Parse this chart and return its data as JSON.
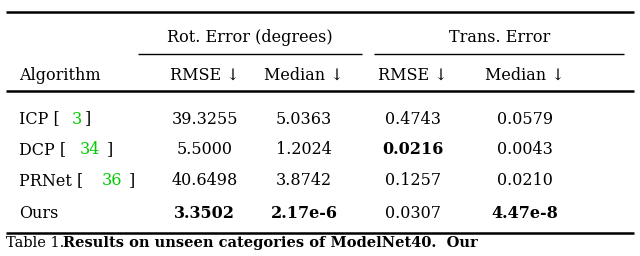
{
  "col_group1_label": "Rot. Error (degrees)",
  "col_group2_label": "Trans. Error",
  "col_headers": [
    "Algorithm",
    "RMSE ↓",
    "Median ↓",
    "RMSE ↓",
    "Median ↓"
  ],
  "rows": [
    {
      "algo_parts": [
        {
          "text": "ICP [",
          "color": "#000000"
        },
        {
          "text": "3",
          "color": "#00cc00"
        },
        {
          "text": "]",
          "color": "#000000"
        }
      ],
      "values": [
        "39.3255",
        "5.0363",
        "0.4743",
        "0.0579"
      ],
      "bold": [
        false,
        false,
        false,
        false
      ]
    },
    {
      "algo_parts": [
        {
          "text": "DCP [",
          "color": "#000000"
        },
        {
          "text": "34",
          "color": "#00cc00"
        },
        {
          "text": "]",
          "color": "#000000"
        }
      ],
      "values": [
        "5.5000",
        "1.2024",
        "0.0216",
        "0.0043"
      ],
      "bold": [
        false,
        false,
        true,
        false
      ]
    },
    {
      "algo_parts": [
        {
          "text": "PRNet [",
          "color": "#000000"
        },
        {
          "text": "36",
          "color": "#00cc00"
        },
        {
          "text": "]",
          "color": "#000000"
        }
      ],
      "values": [
        "40.6498",
        "3.8742",
        "0.1257",
        "0.0210"
      ],
      "bold": [
        false,
        false,
        false,
        false
      ]
    },
    {
      "algo_parts": [
        {
          "text": "Ours",
          "color": "#000000"
        }
      ],
      "values": [
        "3.3502",
        "2.17e-6",
        "0.0307",
        "4.47e-8"
      ],
      "bold": [
        true,
        true,
        false,
        true
      ]
    }
  ],
  "background_color": "#ffffff",
  "font_size": 11.5,
  "caption_font_size": 10.5,
  "green_color": "#00bb00"
}
